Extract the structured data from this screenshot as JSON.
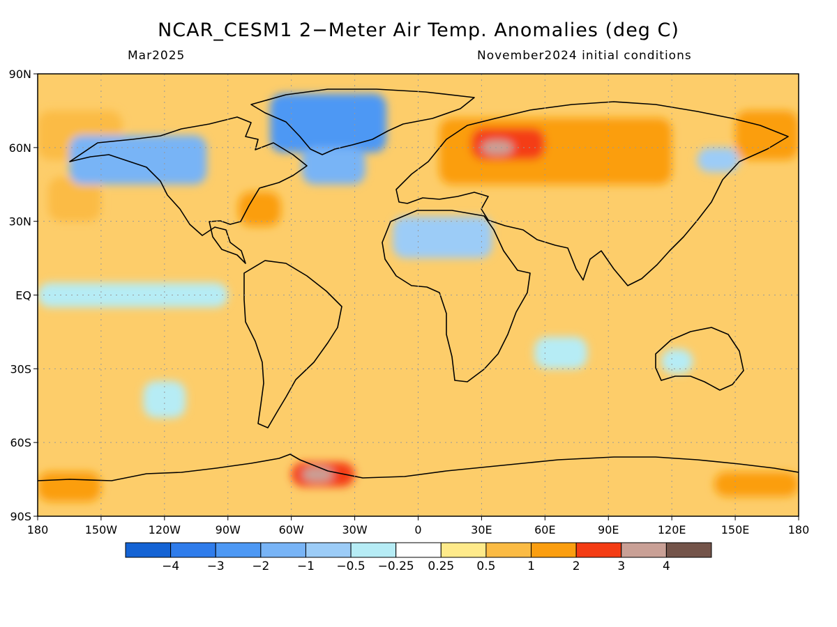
{
  "header": {
    "title": "NCAR_CESM1 2−Meter Air Temp. Anomalies (deg C)",
    "valid_month": "Mar2025",
    "init_conditions": "November2024 initial conditions"
  },
  "map": {
    "projection": "cylindrical equidistant",
    "lon_range": [
      -180,
      180
    ],
    "lat_range": [
      -90,
      90
    ],
    "lat_labels": [
      "90N",
      "60N",
      "30N",
      "EQ",
      "30S",
      "60S",
      "90S"
    ],
    "lat_values": [
      90,
      60,
      30,
      0,
      -30,
      -60,
      -90
    ],
    "lon_labels": [
      "180",
      "150W",
      "120W",
      "90W",
      "60W",
      "30W",
      "0",
      "30E",
      "60E",
      "90E",
      "120E",
      "150E",
      "180"
    ],
    "lon_values": [
      -180,
      -150,
      -120,
      -90,
      -60,
      -30,
      0,
      30,
      60,
      90,
      120,
      150,
      180
    ],
    "gridlines": "dotted",
    "anomaly_regions": [
      {
        "region": "north-pacific-bering",
        "lon": [
          -180,
          -140
        ],
        "lat": [
          55,
          75
        ],
        "category": 8
      },
      {
        "region": "central-north-pacific",
        "lon": [
          -175,
          -150
        ],
        "lat": [
          30,
          48
        ],
        "category": 8
      },
      {
        "region": "alaska-nw-canada",
        "lon": [
          -165,
          -100
        ],
        "lat": [
          45,
          65
        ],
        "category": 3
      },
      {
        "region": "greenland-baffin",
        "lon": [
          -70,
          -15
        ],
        "lat": [
          58,
          82
        ],
        "category": 2
      },
      {
        "region": "north-atlantic-cool",
        "lon": [
          -55,
          -25
        ],
        "lat": [
          45,
          60
        ],
        "category": 3
      },
      {
        "region": "eastern-us-warm",
        "lon": [
          -85,
          -65
        ],
        "lat": [
          28,
          42
        ],
        "category": 9
      },
      {
        "region": "sahara-cool",
        "lon": [
          -12,
          35
        ],
        "lat": [
          15,
          32
        ],
        "category": 4
      },
      {
        "region": "scandinavia-russia-warm",
        "lon": [
          10,
          120
        ],
        "lat": [
          45,
          72
        ],
        "category": 9
      },
      {
        "region": "western-russia-hot",
        "lon": [
          25,
          60
        ],
        "lat": [
          55,
          68
        ],
        "category": 10
      },
      {
        "region": "west-siberia-core",
        "lon": [
          30,
          45
        ],
        "lat": [
          57,
          63
        ],
        "category": 11
      },
      {
        "region": "kamchatka-cool",
        "lon": [
          132,
          152
        ],
        "lat": [
          50,
          60
        ],
        "category": 4
      },
      {
        "region": "arctic-east-warm",
        "lon": [
          150,
          180
        ],
        "lat": [
          55,
          75
        ],
        "category": 9
      },
      {
        "region": "equatorial-pacific-cool",
        "lon": [
          -180,
          -90
        ],
        "lat": [
          -5,
          5
        ],
        "category": 5
      },
      {
        "region": "south-pacific-cool",
        "lon": [
          -130,
          -110
        ],
        "lat": [
          -50,
          -35
        ],
        "category": 5
      },
      {
        "region": "indian-ocean-cool",
        "lon": [
          55,
          80
        ],
        "lat": [
          -30,
          -17
        ],
        "category": 5
      },
      {
        "region": "australia-cool",
        "lon": [
          115,
          130
        ],
        "lat": [
          -32,
          -22
        ],
        "category": 5
      },
      {
        "region": "weddell-sea-hot",
        "lon": [
          -60,
          -30
        ],
        "lat": [
          -78,
          -68
        ],
        "category": 10
      },
      {
        "region": "weddell-core",
        "lon": [
          -55,
          -40
        ],
        "lat": [
          -76,
          -70
        ],
        "category": 11
      },
      {
        "region": "ross-sea-warm",
        "lon": [
          140,
          180
        ],
        "lat": [
          -82,
          -72
        ],
        "category": 9
      },
      {
        "region": "amundsen-warm",
        "lon": [
          -180,
          -150
        ],
        "lat": [
          -84,
          -72
        ],
        "category": 9
      }
    ]
  },
  "colorbar": {
    "labels": [
      "-4",
      "-3",
      "-2",
      "-1",
      "-0.5",
      "-0.25",
      "0.25",
      "0.5",
      "1",
      "2",
      "3",
      "4"
    ],
    "colors": [
      "#1463d4",
      "#2f7ceb",
      "#4d98f4",
      "#78b4f6",
      "#9cccf7",
      "#b6ecf5",
      "#ffffff",
      "#feea8a",
      "#fbbb44",
      "#fb9e10",
      "#f43c14",
      "#c9a096",
      "#74544a"
    ]
  }
}
